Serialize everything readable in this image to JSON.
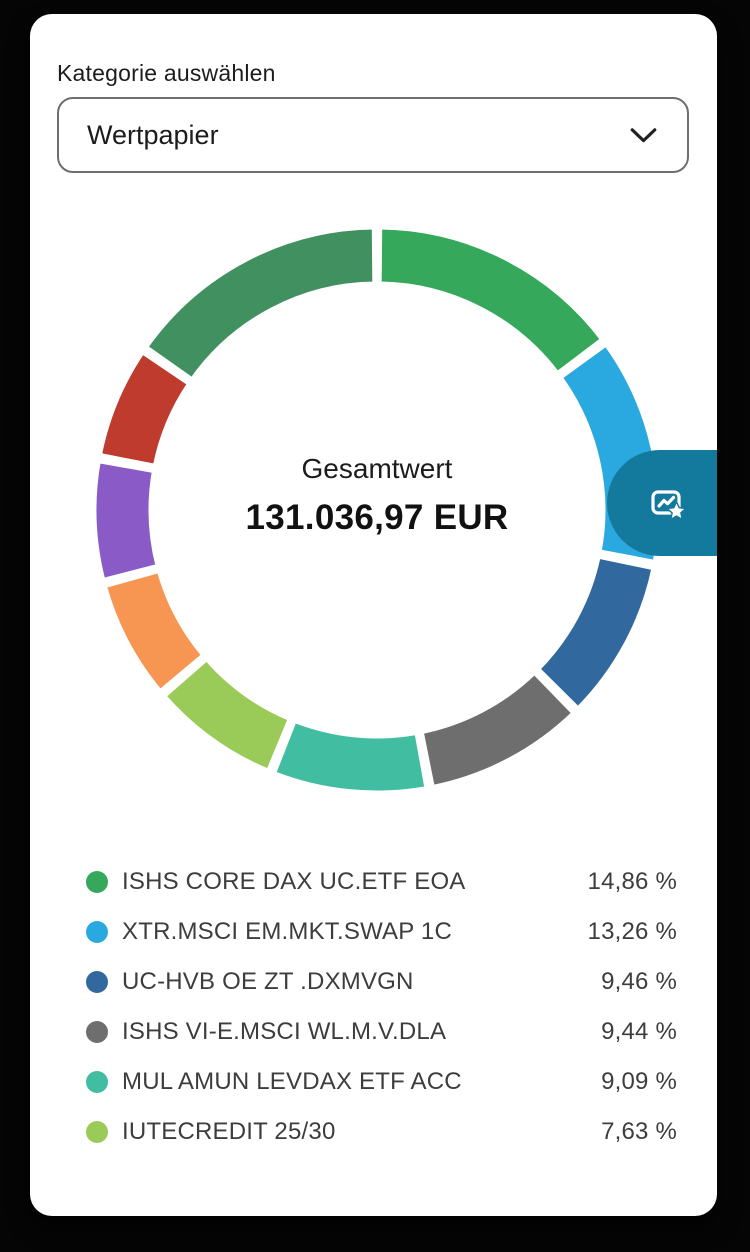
{
  "header": {
    "category_label": "Kategorie auswählen"
  },
  "category_select": {
    "value": "Wertpapier"
  },
  "donut_center": {
    "label": "Gesamtwert",
    "value": "131.036,97 EUR"
  },
  "chart_data": {
    "type": "pie",
    "variant": "donut",
    "title": "Gesamtwert 131.036,97 EUR",
    "start_angle_deg": 0,
    "direction": "clockwise",
    "segments": [
      {
        "label": "ISHS CORE DAX UC.ETF EOA",
        "value_pct": 14.86,
        "color": "#36a85c"
      },
      {
        "label": "XTR.MSCI EM.MKT.SWAP 1C",
        "value_pct": 13.26,
        "color": "#2aa9e0"
      },
      {
        "label": "UC-HVB OE ZT .DXMVGN",
        "value_pct": 9.46,
        "color": "#31699f"
      },
      {
        "label": "ISHS VI-E.MSCI WL.M.V.DLA",
        "value_pct": 9.44,
        "color": "#6e6e6e"
      },
      {
        "label": "MUL AMUN LEVDAX ETF ACC",
        "value_pct": 9.09,
        "color": "#41bda1"
      },
      {
        "label": "IUTECREDIT 25/30",
        "value_pct": 7.63,
        "color": "#9aca57"
      },
      {
        "label": "",
        "value_pct": 7.1,
        "color": "#f79653",
        "estimated": true
      },
      {
        "label": "",
        "value_pct": 7.1,
        "color": "#8a5bc7",
        "estimated": true
      },
      {
        "label": "",
        "value_pct": 6.66,
        "color": "#bf3b2e",
        "estimated": true
      },
      {
        "label": "",
        "value_pct": 15.4,
        "color": "#40915f",
        "estimated": true
      }
    ]
  },
  "legend": {
    "items": [
      {
        "label": "ISHS CORE DAX UC.ETF EOA",
        "percent": "14,86 %",
        "color": "#36a85c"
      },
      {
        "label": "XTR.MSCI EM.MKT.SWAP 1C",
        "percent": "13,26 %",
        "color": "#2aa9e0"
      },
      {
        "label": "UC-HVB OE ZT .DXMVGN",
        "percent": "9,46 %",
        "color": "#31699f"
      },
      {
        "label": "ISHS VI-E.MSCI WL.M.V.DLA",
        "percent": "9,44 %",
        "color": "#6e6e6e"
      },
      {
        "label": "MUL AMUN LEVDAX ETF ACC",
        "percent": "9,09 %",
        "color": "#41bda1"
      },
      {
        "label": "IUTECREDIT 25/30",
        "percent": "7,63 %",
        "color": "#9aca57"
      }
    ]
  },
  "fab": {
    "icon": "chart-star-icon",
    "color": "#147a9d"
  }
}
